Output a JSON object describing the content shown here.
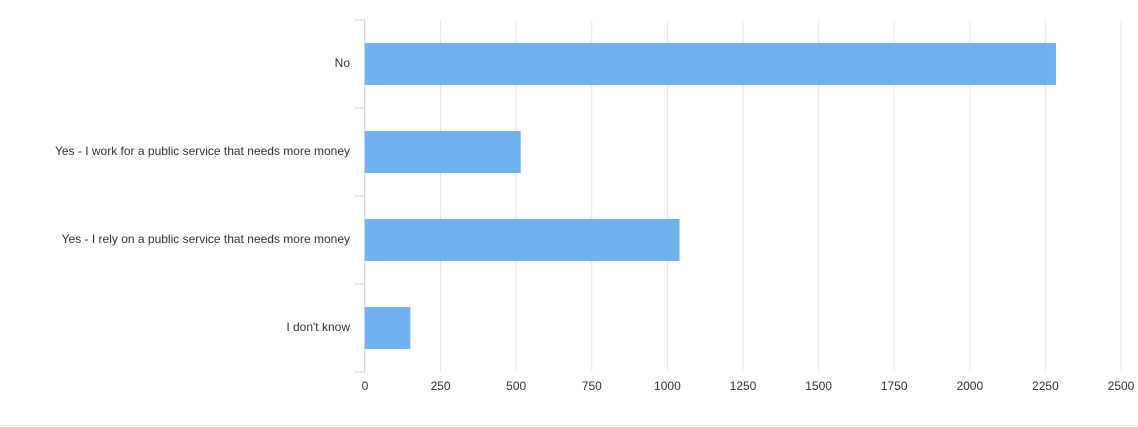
{
  "chart_data": {
    "type": "bar",
    "orientation": "horizontal",
    "categories": [
      "No",
      "Yes - I work for a public service that needs more money",
      "Yes - I rely on a public service that needs more money",
      "I don't know"
    ],
    "values": [
      2285,
      515,
      1040,
      150
    ],
    "color": "#71b1ef",
    "xlim": [
      0,
      2500
    ],
    "xticks": [
      0,
      250,
      500,
      750,
      1000,
      1250,
      1500,
      1750,
      2000,
      2250,
      2500
    ],
    "grid": true
  }
}
